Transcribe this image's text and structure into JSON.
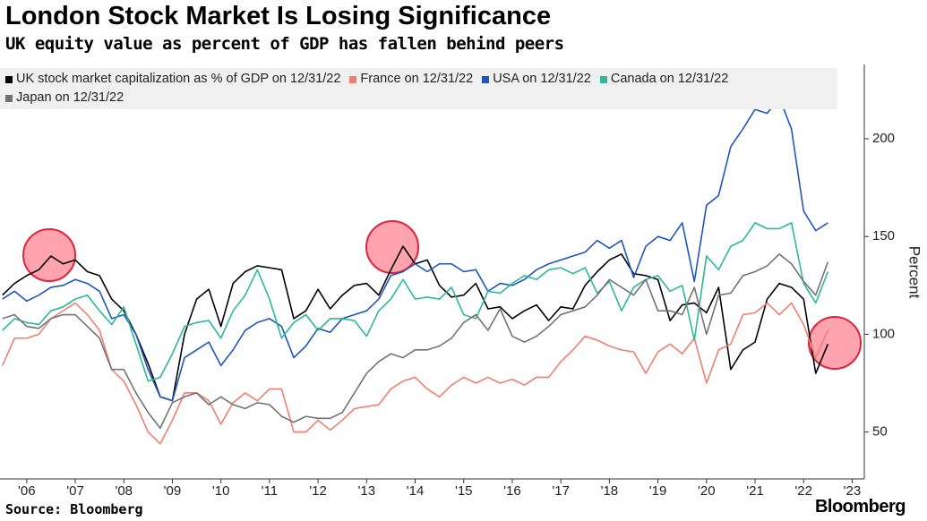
{
  "chart_data": {
    "type": "line",
    "title": "London Stock Market Is Losing Significance",
    "subtitle": "UK equity value as percent of GDP has fallen behind peers",
    "y_label": "Percent",
    "source": "Source: Bloomberg",
    "brand": "Bloomberg",
    "x": [
      2005.5,
      2005.75,
      2006,
      2006.25,
      2006.5,
      2006.75,
      2007,
      2007.25,
      2007.5,
      2007.75,
      2008,
      2008.25,
      2008.5,
      2008.75,
      2009,
      2009.25,
      2009.5,
      2009.75,
      2010,
      2010.25,
      2010.5,
      2010.75,
      2011,
      2011.25,
      2011.5,
      2011.75,
      2012,
      2012.25,
      2012.5,
      2012.75,
      2013,
      2013.25,
      2013.5,
      2013.75,
      2014,
      2014.25,
      2014.5,
      2014.75,
      2015,
      2015.25,
      2015.5,
      2015.75,
      2016,
      2016.25,
      2016.5,
      2016.75,
      2017,
      2017.25,
      2017.5,
      2017.75,
      2018,
      2018.25,
      2018.5,
      2018.75,
      2019,
      2019.25,
      2019.5,
      2019.75,
      2020,
      2020.25,
      2020.5,
      2020.75,
      2021,
      2021.25,
      2021.5,
      2021.75,
      2022,
      2022.25,
      2022.5
    ],
    "series": [
      {
        "name": "UK stock market capitalization as % of GDP on 12/31/22",
        "color": "#000000",
        "values": [
          120,
          126,
          130,
          133,
          140,
          136,
          138,
          132,
          130,
          118,
          112,
          100,
          85,
          68,
          66,
          100,
          118,
          123,
          104,
          126,
          132,
          135,
          134,
          133,
          108,
          112,
          123,
          113,
          120,
          125,
          126,
          120,
          133,
          145,
          136,
          138,
          125,
          119,
          120,
          126,
          113,
          114,
          108,
          112,
          115,
          107,
          114,
          113,
          125,
          132,
          138,
          141,
          131,
          130,
          128,
          107,
          115,
          116,
          111,
          124,
          82,
          92,
          96,
          118,
          126,
          124,
          118,
          80,
          95
        ]
      },
      {
        "name": "France on 12/31/22",
        "color": "#f07f72",
        "values": [
          84,
          98,
          98,
          100,
          108,
          112,
          116,
          110,
          102,
          82,
          76,
          64,
          50,
          44,
          56,
          70,
          70,
          66,
          54,
          65,
          70,
          66,
          72,
          72,
          50,
          50,
          56,
          51,
          56,
          62,
          63,
          64,
          72,
          76,
          78,
          72,
          68,
          74,
          78,
          75,
          78,
          75,
          77,
          74,
          78,
          78,
          86,
          92,
          99,
          97,
          94,
          92,
          91,
          80,
          91,
          95,
          90,
          98,
          75,
          92,
          95,
          110,
          111,
          116,
          110,
          116,
          105,
          88,
          102
        ]
      },
      {
        "name": "USA on 12/31/22",
        "color": "#1f55c0",
        "values": [
          118,
          122,
          117,
          120,
          124,
          125,
          128,
          126,
          122,
          108,
          110,
          100,
          82,
          68,
          66,
          88,
          92,
          96,
          84,
          92,
          102,
          106,
          108,
          104,
          88,
          94,
          103,
          101,
          108,
          110,
          112,
          118,
          130,
          132,
          136,
          132,
          136,
          136,
          132,
          133,
          122,
          126,
          125,
          128,
          133,
          136,
          138,
          140,
          142,
          148,
          144,
          148,
          129,
          145,
          150,
          148,
          157,
          127,
          166,
          171,
          196,
          205,
          215,
          213,
          221,
          205,
          163,
          153,
          157
        ]
      },
      {
        "name": "Canada on 12/31/22",
        "color": "#2bb996",
        "values": [
          102,
          108,
          106,
          105,
          112,
          114,
          118,
          120,
          112,
          105,
          114,
          95,
          76,
          78,
          90,
          104,
          106,
          107,
          98,
          112,
          120,
          133,
          118,
          98,
          106,
          110,
          102,
          108,
          108,
          107,
          99,
          112,
          118,
          128,
          118,
          119,
          118,
          124,
          110,
          108,
          122,
          121,
          126,
          130,
          128,
          133,
          134,
          131,
          134,
          121,
          127,
          112,
          124,
          128,
          130,
          122,
          125,
          97,
          140,
          133,
          145,
          148,
          157,
          154,
          154,
          157,
          126,
          116,
          132
        ]
      },
      {
        "name": "Japan on 12/31/22",
        "color": "#737373",
        "values": [
          108,
          110,
          104,
          103,
          108,
          110,
          110,
          104,
          98,
          82,
          82,
          70,
          60,
          52,
          65,
          68,
          70,
          64,
          68,
          64,
          62,
          65,
          64,
          58,
          55,
          58,
          57,
          57,
          60,
          70,
          80,
          86,
          90,
          88,
          92,
          92,
          94,
          98,
          106,
          110,
          102,
          113,
          99,
          96,
          99,
          104,
          110,
          112,
          114,
          120,
          128,
          124,
          120,
          128,
          112,
          112,
          110,
          124,
          100,
          120,
          121,
          130,
          132,
          135,
          141,
          136,
          127,
          120,
          137
        ]
      }
    ],
    "xlim": [
      2005.45,
      2023.25
    ],
    "xticks": [
      {
        "value": 2006,
        "label": "'06"
      },
      {
        "value": 2007,
        "label": "'07"
      },
      {
        "value": 2008,
        "label": "'08"
      },
      {
        "value": 2009,
        "label": "'09"
      },
      {
        "value": 2010,
        "label": "'10"
      },
      {
        "value": 2011,
        "label": "'11"
      },
      {
        "value": 2012,
        "label": "'12"
      },
      {
        "value": 2013,
        "label": "'13"
      },
      {
        "value": 2014,
        "label": "'14"
      },
      {
        "value": 2015,
        "label": "'15"
      },
      {
        "value": 2016,
        "label": "'16"
      },
      {
        "value": 2017,
        "label": "'17"
      },
      {
        "value": 2018,
        "label": "'18"
      },
      {
        "value": 2019,
        "label": "'19"
      },
      {
        "value": 2020,
        "label": "'20"
      },
      {
        "value": 2021,
        "label": "'21"
      },
      {
        "value": 2022,
        "label": "'22"
      },
      {
        "value": 2023,
        "label": "'23"
      }
    ],
    "ylim": [
      26,
      238
    ],
    "yticks": [
      50,
      100,
      150,
      200
    ],
    "grid": false
  }
}
